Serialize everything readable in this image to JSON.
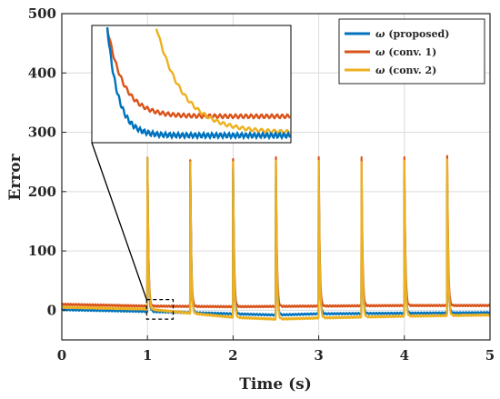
{
  "chart_data": {
    "type": "line",
    "xlabel": "Time (s)",
    "ylabel": "Error",
    "xlim": [
      0,
      5
    ],
    "ylim": [
      -50,
      500
    ],
    "xticks": [
      "0",
      "1",
      "2",
      "3",
      "4",
      "5"
    ],
    "yticks": [
      "0",
      "100",
      "200",
      "300",
      "400",
      "500"
    ],
    "grid": true,
    "legend_position": "top-right",
    "inset": "zoom of the region around t = 1 s",
    "series": [
      {
        "name": "ω (proposed)",
        "legend_symbol": "ω",
        "legend_label": " (proposed)",
        "color": "#0072BD",
        "baseline": [
          [
            0,
            1
          ],
          [
            1,
            -2
          ],
          [
            2,
            -6
          ],
          [
            2.5,
            -8
          ],
          [
            3,
            -6
          ],
          [
            4,
            -5
          ],
          [
            5,
            -4
          ]
        ],
        "spike_times": [
          1,
          1.5,
          2,
          2.5,
          3,
          3.5,
          4,
          4.5
        ],
        "spike_peaks": [
          255,
          250,
          240,
          225,
          225,
          215,
          225,
          215
        ]
      },
      {
        "name": "ω (conv. 1)",
        "legend_symbol": "ω",
        "legend_label": " (conv. 1)",
        "color": "#D95319",
        "baseline": [
          [
            0,
            10
          ],
          [
            1,
            7
          ],
          [
            2,
            6
          ],
          [
            3,
            7
          ],
          [
            4,
            8
          ],
          [
            5,
            8
          ]
        ],
        "spike_times": [
          1,
          1.5,
          2,
          2.5,
          3,
          3.5,
          4,
          4.5
        ],
        "spike_peaks": [
          257,
          253,
          255,
          258,
          258,
          258,
          258,
          260
        ]
      },
      {
        "name": "ω (conv. 2)",
        "legend_symbol": "ω",
        "legend_label": " (conv. 2)",
        "color": "#EDB120",
        "baseline": [
          [
            0,
            5
          ],
          [
            1,
            2
          ],
          [
            1.5,
            -5
          ],
          [
            2,
            -12
          ],
          [
            2.5,
            -15
          ],
          [
            3,
            -13
          ],
          [
            4,
            -10
          ],
          [
            5,
            -8
          ]
        ],
        "spike_times": [
          1,
          1.5,
          2,
          2.5,
          3,
          3.5,
          4,
          4.5
        ],
        "spike_peaks": [
          256,
          250,
          250,
          252,
          252,
          250,
          252,
          254
        ]
      }
    ]
  }
}
